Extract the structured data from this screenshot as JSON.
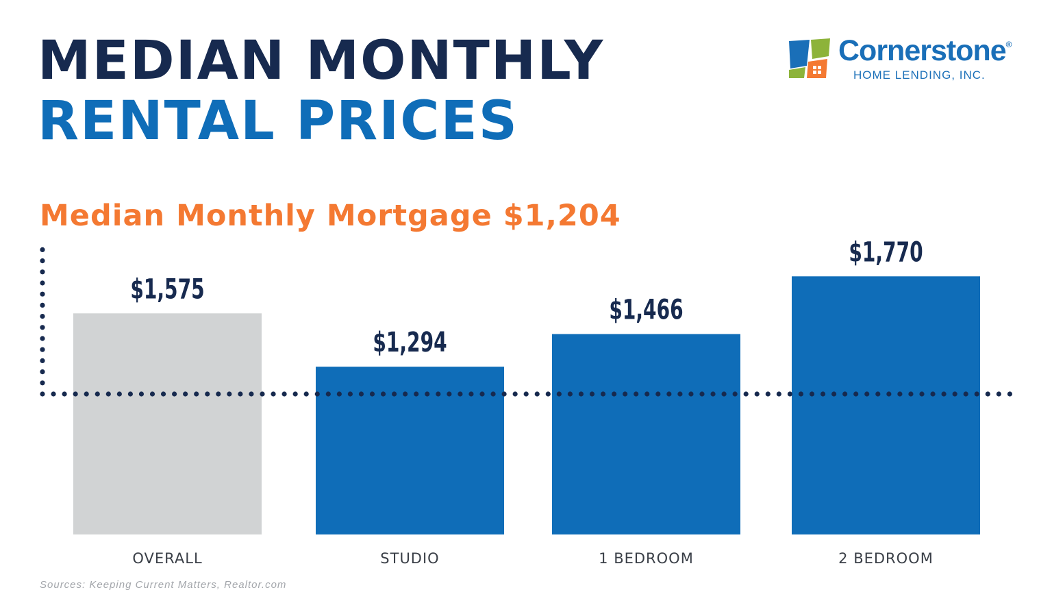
{
  "title_line1": "MEDIAN MONTHLY",
  "title_line2": "RENTAL PRICES",
  "logo": {
    "name": "Cornerstone",
    "registered": "®",
    "tagline": "HOME LENDING, INC."
  },
  "source": "Sources: Keeping Current Matters, Realtor.com",
  "colors": {
    "navy": "#172a4f",
    "blue": "#0f6db8",
    "orange": "#f47932",
    "gray": "#d1d3d4"
  },
  "chart_data": {
    "type": "bar",
    "categories": [
      "OVERALL",
      "STUDIO",
      "1 BEDROOM",
      "2 BEDROOM"
    ],
    "values": [
      1575,
      1294,
      1466,
      1770
    ],
    "value_labels": [
      "$1,575",
      "$1,294",
      "$1,466",
      "$1,770"
    ],
    "bar_colors": [
      "#d1d3d4",
      "#0f6db8",
      "#0f6db8",
      "#0f6db8"
    ],
    "reference_line": {
      "label": "Median Monthly Mortgage $1,204",
      "value": 1204,
      "style": "dotted"
    },
    "ylim": [
      410,
      2000
    ],
    "grid": false
  }
}
